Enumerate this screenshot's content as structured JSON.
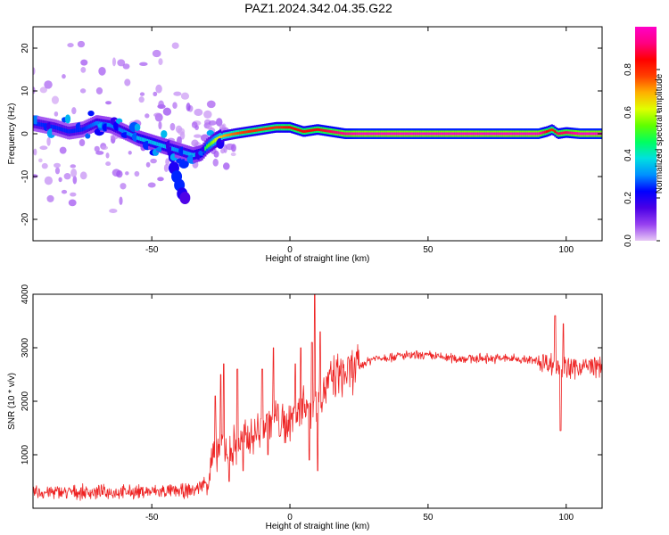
{
  "title": "PAZ1.2024.342.04.35.G22",
  "chart_data": [
    {
      "type": "heatmap",
      "xlabel": "Height of straight line (km)",
      "ylabel": "Frequency (Hz)",
      "colorbar_label": "Normalized spectral amplitude",
      "xlim": [
        -93,
        113
      ],
      "ylim": [
        -25,
        25
      ],
      "xticks": [
        -50,
        0,
        50,
        100
      ],
      "yticks": [
        -20,
        -10,
        0,
        10,
        20
      ],
      "colorbar_ticks": [
        "0.0",
        "0.2",
        "0.4",
        "0.6",
        "0.8"
      ],
      "colorbar_range": [
        0,
        1
      ],
      "colormap": [
        "#e7c8f5",
        "#9640f0",
        "#4a00e6",
        "#0000ff",
        "#0090ff",
        "#00e0e0",
        "#00ff60",
        "#60ff00",
        "#e0ff00",
        "#ffb000",
        "#ff4000",
        "#ff0000",
        "#ff0080",
        "#ff00c8"
      ],
      "ridge": {
        "x": [
          -93,
          -85,
          -80,
          -75,
          -70,
          -65,
          -60,
          -55,
          -50,
          -45,
          -40,
          -35,
          -32,
          -30,
          -27,
          -24,
          -20,
          -15,
          -10,
          -5,
          0,
          5,
          10,
          15,
          20,
          25,
          30,
          40,
          50,
          60,
          70,
          80,
          90,
          93,
          95,
          97,
          100,
          105,
          113
        ],
        "y": [
          2.5,
          1.5,
          0.5,
          1.0,
          2.5,
          2.0,
          0.5,
          -1.0,
          -2.0,
          -3.0,
          -4.0,
          -5.0,
          -4.5,
          -3.0,
          -1.5,
          -0.5,
          0.0,
          0.5,
          1.0,
          1.5,
          1.5,
          0.5,
          1.0,
          0.5,
          0.0,
          0.0,
          0.0,
          0.0,
          0.0,
          0.0,
          0.0,
          0.0,
          0.0,
          0.5,
          1.0,
          0.0,
          0.3,
          0.0,
          0.0
        ],
        "amplitude": [
          0.25,
          0.25,
          0.25,
          0.25,
          0.3,
          0.3,
          0.3,
          0.35,
          0.35,
          0.35,
          0.3,
          0.35,
          0.4,
          0.5,
          0.6,
          0.7,
          0.75,
          0.8,
          0.8,
          0.8,
          0.85,
          0.85,
          0.85,
          0.9,
          0.95,
          1.0,
          1.0,
          1.0,
          1.0,
          1.0,
          1.0,
          1.0,
          1.0,
          0.85,
          0.8,
          0.9,
          0.9,
          1.0,
          1.0
        ]
      },
      "side_branch": {
        "x": [
          -42,
          -41,
          -40,
          -39,
          -38
        ],
        "y": [
          -8,
          -10,
          -12,
          -14,
          -15
        ],
        "amplitude": [
          0.2,
          0.25,
          0.25,
          0.2,
          0.15
        ]
      },
      "scatter_x_range": [
        -93,
        -20
      ],
      "scatter_y_range": [
        -25,
        25
      ]
    },
    {
      "type": "line",
      "xlabel": "Height of straight line (km)",
      "ylabel": "SNR (10 * v/v)",
      "xlim": [
        -93,
        113
      ],
      "ylim": [
        0,
        4000
      ],
      "xticks": [
        -50,
        0,
        50,
        100
      ],
      "yticks": [
        1000,
        2000,
        3000,
        4000
      ],
      "color": "#ee2222",
      "baseline": {
        "x": [
          -93,
          -80,
          -60,
          -40,
          -35,
          -30,
          -28,
          -25,
          -22,
          -20,
          -15,
          -10,
          -5,
          -2,
          0,
          3,
          5,
          8,
          10,
          12,
          15,
          18,
          20,
          25,
          30,
          40,
          50,
          60,
          70,
          80,
          90,
          95,
          100,
          105,
          113
        ],
        "y": [
          300,
          300,
          300,
          320,
          330,
          500,
          900,
          1200,
          1100,
          1150,
          1300,
          1500,
          1700,
          1500,
          1650,
          1800,
          2000,
          1900,
          2000,
          2200,
          2400,
          2500,
          2500,
          2650,
          2800,
          2850,
          2850,
          2800,
          2800,
          2800,
          2750,
          2700,
          2600,
          2650,
          2650
        ]
      },
      "spikes": [
        {
          "x": -27,
          "y": 2100
        },
        {
          "x": -25,
          "y": 2500
        },
        {
          "x": -24,
          "y": 2700
        },
        {
          "x": -22,
          "y": 500
        },
        {
          "x": -19,
          "y": 2600
        },
        {
          "x": -17,
          "y": 700
        },
        {
          "x": -10,
          "y": 2600
        },
        {
          "x": -8,
          "y": 1000
        },
        {
          "x": -6,
          "y": 3000
        },
        {
          "x": 2,
          "y": 2700
        },
        {
          "x": 4,
          "y": 3000
        },
        {
          "x": 7,
          "y": 900
        },
        {
          "x": 8,
          "y": 3100
        },
        {
          "x": 9,
          "y": 4000
        },
        {
          "x": 10,
          "y": 700
        },
        {
          "x": 11,
          "y": 3300
        },
        {
          "x": 96,
          "y": 3600
        },
        {
          "x": 98,
          "y": 1450
        },
        {
          "x": 99,
          "y": 3450
        }
      ]
    }
  ]
}
